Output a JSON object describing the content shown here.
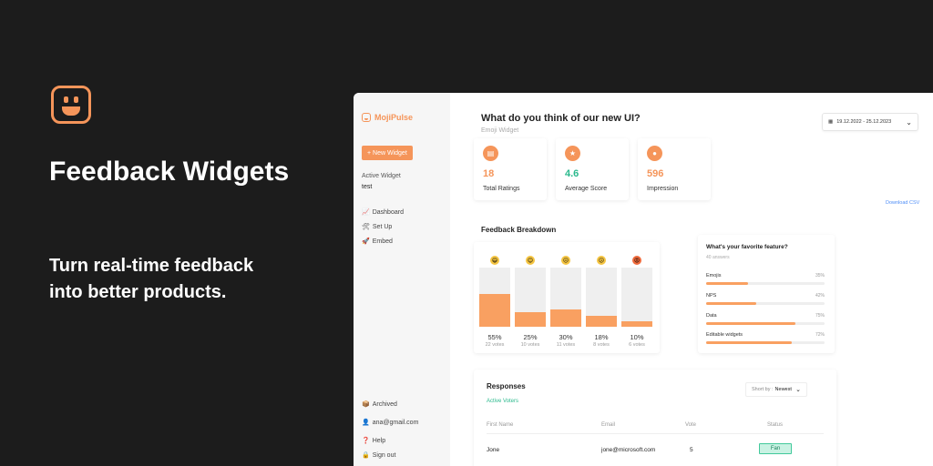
{
  "hero": {
    "title": "Feedback Widgets",
    "subtitle": "Turn real-time feedback into better products."
  },
  "sidebar": {
    "brand": "MojiPulse",
    "new_widget": "+ New Widget",
    "active_label": "Active Widget",
    "active_value": "test",
    "nav": [
      {
        "icon": "📈",
        "label": "Dashboard"
      },
      {
        "icon": "🛠",
        "label": "Set Up"
      },
      {
        "icon": "🚀",
        "label": "Embed"
      }
    ],
    "bottom": [
      {
        "icon": "📦",
        "label": "Archived"
      },
      {
        "icon": "👤",
        "label": "ana@gmail.com"
      },
      {
        "icon": "❓",
        "label": "Help"
      },
      {
        "icon": "🔒",
        "label": "Sign out"
      }
    ]
  },
  "header": {
    "question": "What do you think of our new UI?",
    "widget_type": "Emoji Widget",
    "date_range": "19.12.2022 - 25.12.2023"
  },
  "stats": [
    {
      "icon": "document-icon",
      "glyph": "▤",
      "value": "18",
      "label": "Total Ratings",
      "color": "#f5955a"
    },
    {
      "icon": "star-icon",
      "glyph": "★",
      "value": "4.6",
      "label": "Average Score",
      "color": "#2bb98d"
    },
    {
      "icon": "user-icon",
      "glyph": "●",
      "value": "596",
      "label": "Impression",
      "color": "#f5955a"
    }
  ],
  "download_label": "Download CSV",
  "breakdown": {
    "title": "Feedback Breakdown",
    "items": [
      {
        "emoji": "😄",
        "percent": 55,
        "percent_label": "55%",
        "votes": "22 votes"
      },
      {
        "emoji": "😊",
        "percent": 25,
        "percent_label": "25%",
        "votes": "10 votes"
      },
      {
        "emoji": "😐",
        "percent": 30,
        "percent_label": "30%",
        "votes": "11 votes"
      },
      {
        "emoji": "😕",
        "percent": 18,
        "percent_label": "18%",
        "votes": "8 votes"
      },
      {
        "emoji": "😡",
        "percent": 10,
        "percent_label": "10%",
        "votes": "6 votes"
      }
    ]
  },
  "features": {
    "title": "What's your favorite feature?",
    "subtitle": "40 answers",
    "items": [
      {
        "label": "Emojis",
        "percent": 35,
        "percent_label": "35%"
      },
      {
        "label": "NPS",
        "percent": 42,
        "percent_label": "42%"
      },
      {
        "label": "Data",
        "percent": 75,
        "percent_label": "75%"
      },
      {
        "label": "Editable widgets",
        "percent": 72,
        "percent_label": "72%"
      }
    ]
  },
  "responses": {
    "title": "Responses",
    "tab": "Active Voters",
    "sort_label": "Short by :",
    "sort_value": "Newest",
    "columns": [
      "First Name",
      "Email",
      "Vote",
      "Status"
    ],
    "rows": [
      {
        "first_name": "Jone",
        "email": "jone@microsoft.com",
        "vote": "5",
        "status": "Fan"
      }
    ]
  }
}
